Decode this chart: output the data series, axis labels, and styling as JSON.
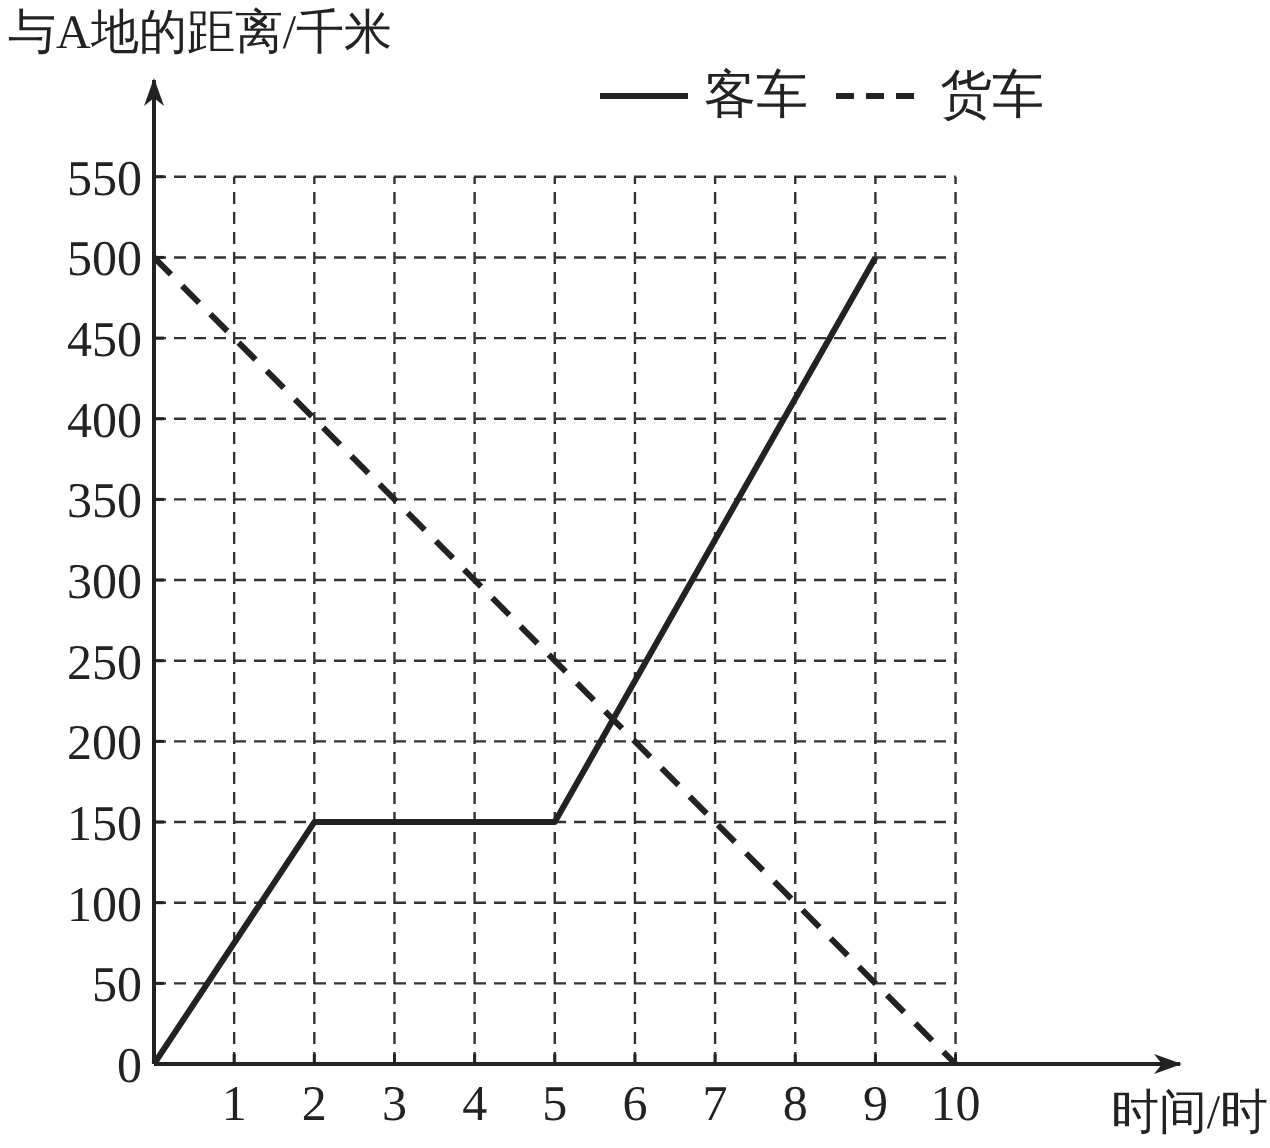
{
  "chart_data": {
    "type": "line",
    "xlabel": "时间/时",
    "ylabel": "与A地的距离/千米",
    "xlim": [
      0,
      12.8
    ],
    "ylim": [
      0,
      610
    ],
    "xticks": [
      1,
      2,
      3,
      4,
      5,
      6,
      7,
      8,
      9,
      10
    ],
    "yticks": [
      0,
      50,
      100,
      150,
      200,
      250,
      300,
      350,
      400,
      450,
      500,
      550
    ],
    "grid": true,
    "legend": "top right",
    "series": [
      {
        "name": "客车",
        "color": "#222222",
        "line_style": "solid",
        "x": [
          0,
          2,
          5,
          9
        ],
        "values": [
          0,
          150,
          150,
          500
        ]
      },
      {
        "name": "货车",
        "color": "#222222",
        "line_style": "dashed",
        "x": [
          0,
          10
        ],
        "values": [
          500,
          0
        ]
      }
    ]
  }
}
